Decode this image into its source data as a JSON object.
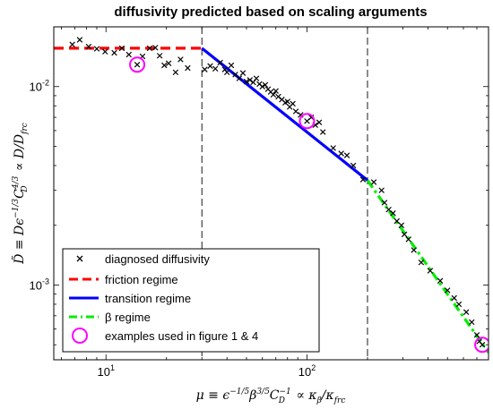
{
  "chart_data": {
    "type": "scatter",
    "title": "diffusivity predicted based on scaling arguments",
    "xlabel": "μ ≡ ϵ^{−1/5} β^{3/5} C_D^{−1} ∝ κ_β/κ_frc",
    "ylabel": "D̃ ≡ Dϵ^{−1/3} C_D^{4/3} ∝ D/D_frc",
    "xscale": "log",
    "yscale": "log",
    "xlim": [
      5.5,
      800
    ],
    "ylim": [
      0.00042,
      0.02
    ],
    "x_ticks": [
      {
        "base": "10",
        "exp": "1",
        "value": 10
      },
      {
        "base": "10",
        "exp": "2",
        "value": 100
      }
    ],
    "y_ticks": [
      {
        "base": "10",
        "exp": "-3",
        "value": 0.001
      },
      {
        "base": "10",
        "exp": "-2",
        "value": 0.01
      }
    ],
    "vlines": [
      30,
      200
    ],
    "series": [
      {
        "name": "diagnosed diffusivity",
        "kind": "markers",
        "marker": "x",
        "color": "#000000",
        "points": [
          [
            6.8,
            0.0163
          ],
          [
            7.4,
            0.0172
          ],
          [
            8.2,
            0.0159
          ],
          [
            9.0,
            0.0155
          ],
          [
            9.9,
            0.015
          ],
          [
            11.0,
            0.0148
          ],
          [
            12.0,
            0.0156
          ],
          [
            13.0,
            0.0145
          ],
          [
            14.3,
            0.0129
          ],
          [
            15.2,
            0.0142
          ],
          [
            16.5,
            0.0156
          ],
          [
            17.6,
            0.0157
          ],
          [
            18.5,
            0.0143
          ],
          [
            19.5,
            0.0128
          ],
          [
            20.5,
            0.0131
          ],
          [
            22.2,
            0.0118
          ],
          [
            23.5,
            0.0137
          ],
          [
            25.5,
            0.0124
          ],
          [
            31.0,
            0.0122
          ],
          [
            33.0,
            0.0127
          ],
          [
            35.0,
            0.0123
          ],
          [
            37.0,
            0.0132
          ],
          [
            39.0,
            0.0122
          ],
          [
            40.0,
            0.0118
          ],
          [
            42.0,
            0.0128
          ],
          [
            44.0,
            0.0115
          ],
          [
            46.0,
            0.011
          ],
          [
            48.0,
            0.0117
          ],
          [
            50.0,
            0.0106
          ],
          [
            52.0,
            0.0108
          ],
          [
            54.0,
            0.0105
          ],
          [
            56.0,
            0.011
          ],
          [
            58.0,
            0.0103
          ],
          [
            60.0,
            0.01
          ],
          [
            62.0,
            0.0102
          ],
          [
            64.0,
            0.0097
          ],
          [
            66.0,
            0.0094
          ],
          [
            68.0,
            0.0091
          ],
          [
            70.0,
            0.0095
          ],
          [
            72.0,
            0.0089
          ],
          [
            75.0,
            0.0086
          ],
          [
            78.0,
            0.0083
          ],
          [
            80.0,
            0.0084
          ],
          [
            82.0,
            0.0079
          ],
          [
            85.0,
            0.0082
          ],
          [
            88.0,
            0.0075
          ],
          [
            93.0,
            0.0072
          ],
          [
            100.0,
            0.0067
          ],
          [
            105.0,
            0.007
          ],
          [
            110.0,
            0.0064
          ],
          [
            115.0,
            0.0066
          ],
          [
            120.0,
            0.0059
          ],
          [
            135.0,
            0.0049
          ],
          [
            148.0,
            0.0046
          ],
          [
            158.0,
            0.0045
          ],
          [
            170.0,
            0.004
          ],
          [
            190.0,
            0.0034
          ],
          [
            215.0,
            0.0033
          ],
          [
            235.0,
            0.003
          ],
          [
            243.0,
            0.0026
          ],
          [
            255.0,
            0.0024
          ],
          [
            268.0,
            0.0023
          ],
          [
            280.0,
            0.0021
          ],
          [
            295.0,
            0.002
          ],
          [
            305.0,
            0.0018
          ],
          [
            320.0,
            0.0017
          ],
          [
            340.0,
            0.0015
          ],
          [
            370.0,
            0.0013
          ],
          [
            410.0,
            0.00118
          ],
          [
            460.0,
            0.00105
          ],
          [
            500.0,
            0.00094
          ],
          [
            540.0,
            0.00086
          ],
          [
            570.0,
            0.0008
          ],
          [
            620.0,
            0.00073
          ],
          [
            660.0,
            0.00065
          ],
          [
            700.0,
            0.00056
          ],
          [
            720.0,
            0.00052
          ],
          [
            745.0,
            0.0005
          ]
        ]
      },
      {
        "name": "friction regime",
        "kind": "line",
        "style": "dashed",
        "color": "#ff0000",
        "points": [
          [
            5.5,
            0.0156
          ],
          [
            30.0,
            0.0156
          ]
        ]
      },
      {
        "name": "transition regime",
        "kind": "line",
        "style": "solid",
        "color": "#0000ff",
        "points": [
          [
            30.0,
            0.0156
          ],
          [
            200.0,
            0.00337
          ]
        ]
      },
      {
        "name": "β regime",
        "kind": "line",
        "style": "dashdot",
        "color": "#00ee00",
        "points": [
          [
            200.0,
            0.00337
          ],
          [
            800.0,
            0.000457
          ]
        ]
      },
      {
        "name": "examples used in figure 1 & 4",
        "kind": "markers",
        "marker": "circle",
        "color": "#ff00ff",
        "points": [
          [
            14.3,
            0.0129
          ],
          [
            100.0,
            0.0067
          ],
          [
            745.0,
            0.0005
          ]
        ]
      }
    ],
    "legend_position": "bottom-left"
  }
}
